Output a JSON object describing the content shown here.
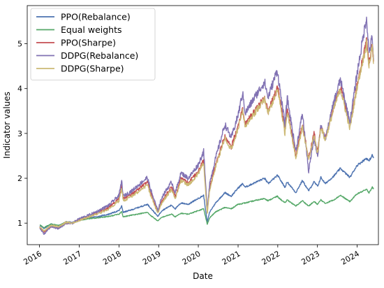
{
  "chart_data": {
    "type": "line",
    "title": "",
    "xlabel": "Date",
    "ylabel": "Indicator values",
    "xlim": [
      "2015-09-10",
      "2024-07-15"
    ],
    "ylim": [
      0.52,
      5.85
    ],
    "x_ticks": [
      "2016",
      "2017",
      "2018",
      "2019",
      "2020",
      "2021",
      "2022",
      "2023",
      "2024"
    ],
    "y_ticks": [
      1,
      2,
      3,
      4,
      5
    ],
    "grid": false,
    "legend": "top-left",
    "series": [
      {
        "name": "PPO(Rebalance)",
        "color": "#4c72b0",
        "points": [
          [
            "2016-01-04",
            0.95
          ],
          [
            "2016-02-11",
            0.88
          ],
          [
            "2016-04-15",
            0.98
          ],
          [
            "2016-06-27",
            0.94
          ],
          [
            "2016-09-01",
            1.03
          ],
          [
            "2016-11-01",
            1.02
          ],
          [
            "2017-01-03",
            1.08
          ],
          [
            "2017-04-01",
            1.12
          ],
          [
            "2017-07-01",
            1.15
          ],
          [
            "2017-10-01",
            1.2
          ],
          [
            "2018-01-02",
            1.28
          ],
          [
            "2018-01-26",
            1.38
          ],
          [
            "2018-02-09",
            1.24
          ],
          [
            "2018-05-01",
            1.3
          ],
          [
            "2018-09-20",
            1.42
          ],
          [
            "2018-10-15",
            1.35
          ],
          [
            "2018-12-24",
            1.15
          ],
          [
            "2019-01-31",
            1.28
          ],
          [
            "2019-04-30",
            1.4
          ],
          [
            "2019-06-03",
            1.32
          ],
          [
            "2019-07-26",
            1.45
          ],
          [
            "2019-10-01",
            1.42
          ],
          [
            "2019-12-31",
            1.55
          ],
          [
            "2020-02-19",
            1.62
          ],
          [
            "2020-03-23",
            1.02
          ],
          [
            "2020-04-15",
            1.25
          ],
          [
            "2020-06-08",
            1.45
          ],
          [
            "2020-09-02",
            1.68
          ],
          [
            "2020-10-30",
            1.6
          ],
          [
            "2020-12-31",
            1.78
          ],
          [
            "2021-02-12",
            1.88
          ],
          [
            "2021-03-08",
            1.8
          ],
          [
            "2021-06-01",
            1.9
          ],
          [
            "2021-09-02",
            2.0
          ],
          [
            "2021-10-04",
            1.88
          ],
          [
            "2021-12-28",
            2.06
          ],
          [
            "2022-01-03",
            2.05
          ],
          [
            "2022-03-08",
            1.8
          ],
          [
            "2022-03-29",
            1.92
          ],
          [
            "2022-06-16",
            1.68
          ],
          [
            "2022-08-16",
            1.95
          ],
          [
            "2022-10-12",
            1.72
          ],
          [
            "2022-12-01",
            1.92
          ],
          [
            "2023-01-03",
            1.82
          ],
          [
            "2023-02-02",
            2.02
          ],
          [
            "2023-03-13",
            1.88
          ],
          [
            "2023-06-01",
            2.05
          ],
          [
            "2023-07-31",
            2.22
          ],
          [
            "2023-10-27",
            2.02
          ],
          [
            "2023-12-29",
            2.28
          ],
          [
            "2024-03-28",
            2.45
          ],
          [
            "2024-04-19",
            2.38
          ],
          [
            "2024-05-20",
            2.52
          ],
          [
            "2024-05-31",
            2.45
          ]
        ]
      },
      {
        "name": "Equal weights",
        "color": "#55a868",
        "points": [
          [
            "2016-01-04",
            0.96
          ],
          [
            "2016-02-11",
            0.9
          ],
          [
            "2016-04-15",
            0.98
          ],
          [
            "2016-06-27",
            0.95
          ],
          [
            "2016-09-01",
            1.02
          ],
          [
            "2016-11-01",
            1.0
          ],
          [
            "2017-01-03",
            1.06
          ],
          [
            "2017-04-01",
            1.1
          ],
          [
            "2017-07-01",
            1.12
          ],
          [
            "2017-10-01",
            1.15
          ],
          [
            "2018-01-02",
            1.2
          ],
          [
            "2018-01-26",
            1.26
          ],
          [
            "2018-02-09",
            1.14
          ],
          [
            "2018-05-01",
            1.18
          ],
          [
            "2018-09-20",
            1.24
          ],
          [
            "2018-10-15",
            1.18
          ],
          [
            "2018-12-24",
            1.05
          ],
          [
            "2019-01-31",
            1.13
          ],
          [
            "2019-04-30",
            1.2
          ],
          [
            "2019-06-03",
            1.14
          ],
          [
            "2019-07-26",
            1.22
          ],
          [
            "2019-10-01",
            1.2
          ],
          [
            "2019-12-31",
            1.28
          ],
          [
            "2020-02-19",
            1.32
          ],
          [
            "2020-03-23",
            0.98
          ],
          [
            "2020-04-15",
            1.12
          ],
          [
            "2020-06-08",
            1.25
          ],
          [
            "2020-09-02",
            1.35
          ],
          [
            "2020-10-30",
            1.32
          ],
          [
            "2020-12-31",
            1.42
          ],
          [
            "2021-03-08",
            1.45
          ],
          [
            "2021-06-01",
            1.5
          ],
          [
            "2021-09-02",
            1.55
          ],
          [
            "2021-10-04",
            1.5
          ],
          [
            "2021-12-28",
            1.6
          ],
          [
            "2022-01-03",
            1.58
          ],
          [
            "2022-03-08",
            1.45
          ],
          [
            "2022-03-29",
            1.52
          ],
          [
            "2022-06-16",
            1.38
          ],
          [
            "2022-08-16",
            1.5
          ],
          [
            "2022-10-12",
            1.38
          ],
          [
            "2022-12-01",
            1.48
          ],
          [
            "2023-01-03",
            1.42
          ],
          [
            "2023-02-02",
            1.52
          ],
          [
            "2023-03-13",
            1.44
          ],
          [
            "2023-06-01",
            1.52
          ],
          [
            "2023-07-31",
            1.62
          ],
          [
            "2023-10-27",
            1.48
          ],
          [
            "2023-12-29",
            1.65
          ],
          [
            "2024-03-28",
            1.75
          ],
          [
            "2024-04-19",
            1.68
          ],
          [
            "2024-05-20",
            1.8
          ],
          [
            "2024-05-31",
            1.76
          ]
        ]
      },
      {
        "name": "PPO(Sharpe)",
        "color": "#c44e52",
        "points": [
          [
            "2016-01-04",
            0.9
          ],
          [
            "2016-02-11",
            0.8
          ],
          [
            "2016-04-15",
            0.92
          ],
          [
            "2016-06-27",
            0.9
          ],
          [
            "2016-09-01",
            1.0
          ],
          [
            "2016-11-01",
            1.0
          ],
          [
            "2017-01-03",
            1.08
          ],
          [
            "2017-04-01",
            1.15
          ],
          [
            "2017-07-01",
            1.25
          ],
          [
            "2017-10-01",
            1.35
          ],
          [
            "2018-01-02",
            1.55
          ],
          [
            "2018-01-26",
            1.85
          ],
          [
            "2018-02-09",
            1.55
          ],
          [
            "2018-05-01",
            1.65
          ],
          [
            "2018-09-20",
            1.92
          ],
          [
            "2018-10-15",
            1.7
          ],
          [
            "2018-12-24",
            1.25
          ],
          [
            "2019-01-31",
            1.5
          ],
          [
            "2019-04-30",
            1.8
          ],
          [
            "2019-06-03",
            1.6
          ],
          [
            "2019-07-26",
            2.0
          ],
          [
            "2019-10-01",
            1.9
          ],
          [
            "2019-12-31",
            2.15
          ],
          [
            "2020-02-19",
            2.4
          ],
          [
            "2020-03-23",
            1.25
          ],
          [
            "2020-04-15",
            1.8
          ],
          [
            "2020-06-08",
            2.3
          ],
          [
            "2020-09-02",
            2.95
          ],
          [
            "2020-10-30",
            2.7
          ],
          [
            "2020-12-31",
            3.15
          ],
          [
            "2021-02-12",
            3.55
          ],
          [
            "2021-03-08",
            3.2
          ],
          [
            "2021-06-01",
            3.5
          ],
          [
            "2021-09-02",
            3.8
          ],
          [
            "2021-10-04",
            3.5
          ],
          [
            "2021-12-28",
            4.0
          ],
          [
            "2022-01-03",
            4.0
          ],
          [
            "2022-03-08",
            3.05
          ],
          [
            "2022-03-29",
            3.55
          ],
          [
            "2022-06-16",
            2.5
          ],
          [
            "2022-08-16",
            3.2
          ],
          [
            "2022-10-12",
            2.45
          ],
          [
            "2022-12-01",
            3.0
          ],
          [
            "2023-01-03",
            2.6
          ],
          [
            "2023-02-02",
            3.2
          ],
          [
            "2023-03-13",
            2.9
          ],
          [
            "2023-06-01",
            3.6
          ],
          [
            "2023-07-31",
            4.05
          ],
          [
            "2023-10-27",
            3.2
          ],
          [
            "2023-12-29",
            4.05
          ],
          [
            "2024-03-28",
            5.05
          ],
          [
            "2024-04-19",
            4.55
          ],
          [
            "2024-05-20",
            5.0
          ],
          [
            "2024-05-31",
            4.6
          ]
        ]
      },
      {
        "name": "DDPG(Rebalance)",
        "color": "#8172b3",
        "points": [
          [
            "2016-01-04",
            0.88
          ],
          [
            "2016-02-11",
            0.76
          ],
          [
            "2016-04-15",
            0.92
          ],
          [
            "2016-06-27",
            0.88
          ],
          [
            "2016-09-01",
            1.0
          ],
          [
            "2016-11-01",
            1.0
          ],
          [
            "2017-01-03",
            1.1
          ],
          [
            "2017-04-01",
            1.18
          ],
          [
            "2017-07-01",
            1.28
          ],
          [
            "2017-10-01",
            1.4
          ],
          [
            "2018-01-02",
            1.62
          ],
          [
            "2018-01-26",
            1.95
          ],
          [
            "2018-02-09",
            1.6
          ],
          [
            "2018-05-01",
            1.72
          ],
          [
            "2018-09-20",
            2.02
          ],
          [
            "2018-10-15",
            1.78
          ],
          [
            "2018-12-24",
            1.28
          ],
          [
            "2019-01-31",
            1.58
          ],
          [
            "2019-04-30",
            1.92
          ],
          [
            "2019-06-03",
            1.68
          ],
          [
            "2019-07-26",
            2.12
          ],
          [
            "2019-10-01",
            2.0
          ],
          [
            "2019-12-31",
            2.3
          ],
          [
            "2020-02-19",
            2.6
          ],
          [
            "2020-03-23",
            1.3
          ],
          [
            "2020-04-15",
            1.9
          ],
          [
            "2020-06-08",
            2.45
          ],
          [
            "2020-09-02",
            3.2
          ],
          [
            "2020-10-30",
            2.9
          ],
          [
            "2020-12-31",
            3.4
          ],
          [
            "2021-02-12",
            3.9
          ],
          [
            "2021-03-08",
            3.45
          ],
          [
            "2021-06-01",
            3.8
          ],
          [
            "2021-09-02",
            4.15
          ],
          [
            "2021-10-04",
            3.8
          ],
          [
            "2021-12-28",
            4.42
          ],
          [
            "2022-01-03",
            4.3
          ],
          [
            "2022-03-08",
            3.2
          ],
          [
            "2022-03-29",
            3.8
          ],
          [
            "2022-06-16",
            2.6
          ],
          [
            "2022-08-16",
            3.45
          ],
          [
            "2022-10-12",
            2.15
          ],
          [
            "2022-12-01",
            2.9
          ],
          [
            "2023-01-03",
            2.5
          ],
          [
            "2023-02-02",
            3.2
          ],
          [
            "2023-03-13",
            2.85
          ],
          [
            "2023-06-01",
            3.7
          ],
          [
            "2023-07-31",
            4.2
          ],
          [
            "2023-10-27",
            3.25
          ],
          [
            "2023-12-29",
            4.3
          ],
          [
            "2024-03-28",
            5.6
          ],
          [
            "2024-04-19",
            4.8
          ],
          [
            "2024-05-20",
            5.15
          ],
          [
            "2024-05-31",
            4.65
          ]
        ]
      },
      {
        "name": "DDPG(Sharpe)",
        "color": "#ccb974",
        "points": [
          [
            "2016-01-04",
            0.92
          ],
          [
            "2016-02-11",
            0.82
          ],
          [
            "2016-04-15",
            0.95
          ],
          [
            "2016-06-27",
            0.92
          ],
          [
            "2016-09-01",
            1.02
          ],
          [
            "2016-11-01",
            1.0
          ],
          [
            "2017-01-03",
            1.06
          ],
          [
            "2017-04-01",
            1.14
          ],
          [
            "2017-07-01",
            1.22
          ],
          [
            "2017-10-01",
            1.32
          ],
          [
            "2018-01-02",
            1.5
          ],
          [
            "2018-01-26",
            1.78
          ],
          [
            "2018-02-09",
            1.5
          ],
          [
            "2018-05-01",
            1.6
          ],
          [
            "2018-09-20",
            1.85
          ],
          [
            "2018-10-15",
            1.65
          ],
          [
            "2018-12-24",
            1.22
          ],
          [
            "2019-01-31",
            1.45
          ],
          [
            "2019-04-30",
            1.75
          ],
          [
            "2019-06-03",
            1.55
          ],
          [
            "2019-07-26",
            1.95
          ],
          [
            "2019-10-01",
            1.85
          ],
          [
            "2019-12-31",
            2.1
          ],
          [
            "2020-02-19",
            2.35
          ],
          [
            "2020-03-23",
            1.2
          ],
          [
            "2020-04-15",
            1.75
          ],
          [
            "2020-06-08",
            2.25
          ],
          [
            "2020-09-02",
            2.9
          ],
          [
            "2020-10-30",
            2.65
          ],
          [
            "2020-12-31",
            3.1
          ],
          [
            "2021-02-12",
            3.5
          ],
          [
            "2021-03-08",
            3.15
          ],
          [
            "2021-06-01",
            3.45
          ],
          [
            "2021-09-02",
            3.75
          ],
          [
            "2021-10-04",
            3.45
          ],
          [
            "2021-12-28",
            3.95
          ],
          [
            "2022-01-03",
            3.95
          ],
          [
            "2022-03-08",
            3.0
          ],
          [
            "2022-03-29",
            3.5
          ],
          [
            "2022-06-16",
            2.45
          ],
          [
            "2022-08-16",
            3.15
          ],
          [
            "2022-10-12",
            2.4
          ],
          [
            "2022-12-01",
            2.95
          ],
          [
            "2023-01-03",
            2.55
          ],
          [
            "2023-02-02",
            3.15
          ],
          [
            "2023-03-13",
            2.85
          ],
          [
            "2023-06-01",
            3.55
          ],
          [
            "2023-07-31",
            4.0
          ],
          [
            "2023-10-27",
            3.1
          ],
          [
            "2023-12-29",
            4.0
          ],
          [
            "2024-03-28",
            5.0
          ],
          [
            "2024-04-19",
            4.5
          ],
          [
            "2024-05-20",
            4.95
          ],
          [
            "2024-05-31",
            4.55
          ]
        ]
      }
    ]
  }
}
